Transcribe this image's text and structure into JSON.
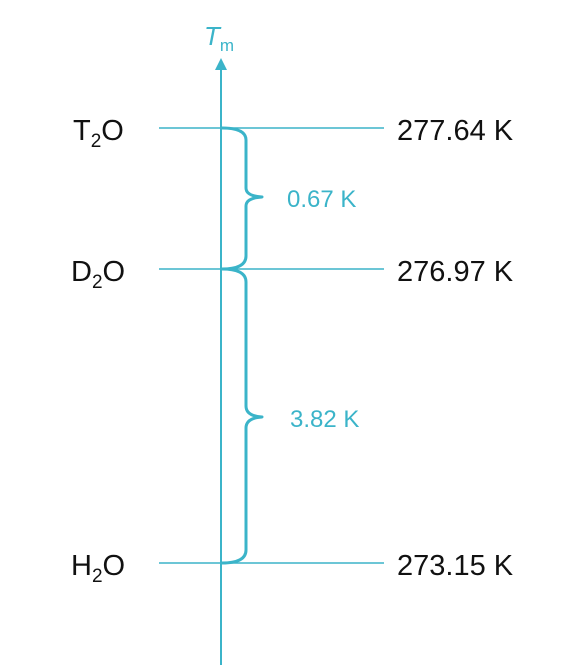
{
  "axis": {
    "symbol": "T",
    "subscript": "m",
    "color": "#3bb4c9"
  },
  "levels": [
    {
      "name": "T2O",
      "prefix": "T",
      "sub": "2",
      "suffix": "O",
      "value": "277.64 K"
    },
    {
      "name": "D2O",
      "prefix": "D",
      "sub": "2",
      "suffix": "O",
      "value": "276.97 K"
    },
    {
      "name": "H2O",
      "prefix": "H",
      "sub": "2",
      "suffix": "O",
      "value": "273.15 K"
    }
  ],
  "differences": [
    {
      "label": "0.67 K"
    },
    {
      "label": "3.82 K"
    }
  ]
}
